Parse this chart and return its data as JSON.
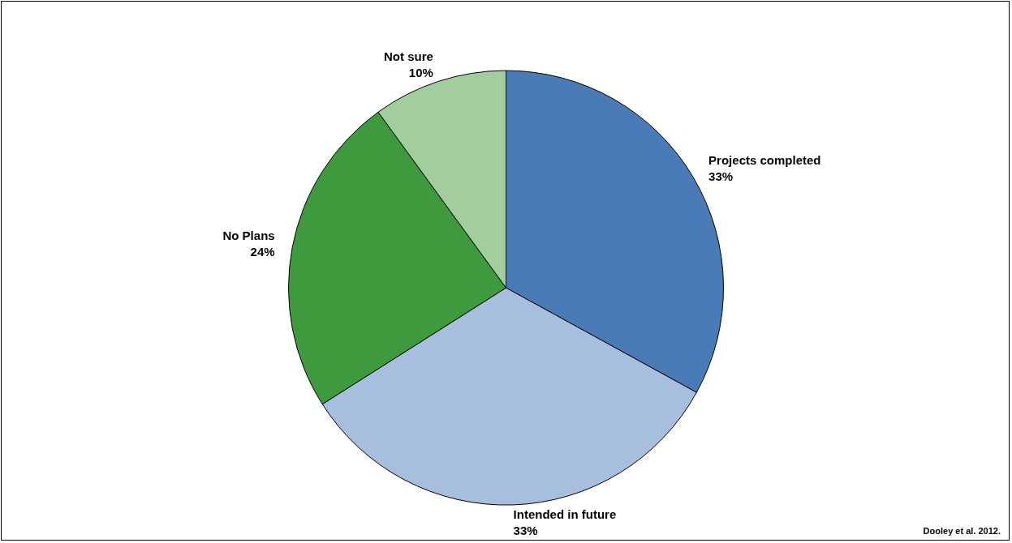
{
  "chart_data": {
    "type": "pie",
    "categories": [
      "Projects completed",
      "Intended in future",
      "No Plans",
      "Not sure"
    ],
    "values": [
      33,
      33,
      24,
      10
    ],
    "colors": [
      "#4a7bb7",
      "#a7bede",
      "#3f9a3e",
      "#a2cd9c"
    ],
    "value_labels": [
      "33%",
      "33%",
      "24%",
      "10%"
    ],
    "legend": false,
    "annotations": [
      "Dooley et al. 2012."
    ]
  }
}
